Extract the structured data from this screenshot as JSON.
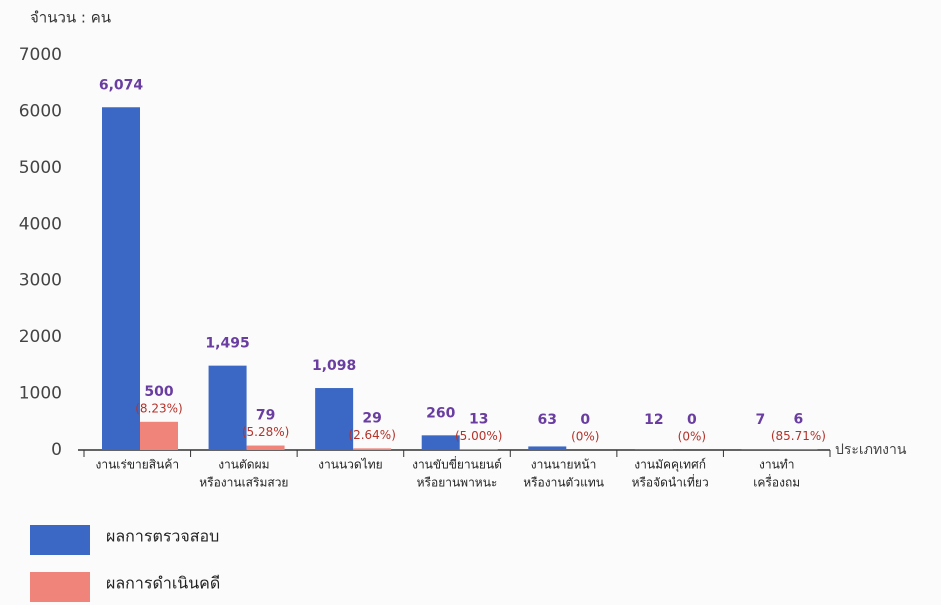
{
  "chart_data": {
    "type": "bar",
    "y_label": "จำนวน : คน",
    "x_label": "ประเภทงาน",
    "categories": [
      [
        "งานเร่ขายสินค้า"
      ],
      [
        "งานตัดผม",
        "หรืองานเสริมสวย"
      ],
      [
        "งานนวดไทย"
      ],
      [
        "งานขับขี่ยานยนต์",
        "หรือยานพาหนะ"
      ],
      [
        "งานนายหน้า",
        "หรืองานตัวแทน"
      ],
      [
        "งานมัคคุเทศก์",
        "หรือจัดนำเที่ยว"
      ],
      [
        "งานทำ",
        "เครื่องถม"
      ]
    ],
    "series": [
      {
        "name": "ผลการตรวจสอบ",
        "color": "#3b68c4",
        "values": [
          6074,
          1495,
          1098,
          260,
          63,
          12,
          7
        ],
        "value_labels": [
          "6,074",
          "1,495",
          "1,098",
          "260",
          "63",
          "12",
          "7"
        ]
      },
      {
        "name": "ผลการดำเนินคดี",
        "color": "#f0847a",
        "values": [
          500,
          79,
          29,
          13,
          0,
          0,
          6
        ],
        "percent_labels": [
          "(8.23%)",
          "(5.28%)",
          "(2.64%)",
          "(5.00%)",
          "(0%)",
          "(0%)",
          "(85.71%)"
        ]
      }
    ],
    "ylim": [
      0,
      7000
    ],
    "yticks": [
      0,
      1000,
      2000,
      3000,
      4000,
      5000,
      6000,
      7000
    ],
    "grid": false
  }
}
